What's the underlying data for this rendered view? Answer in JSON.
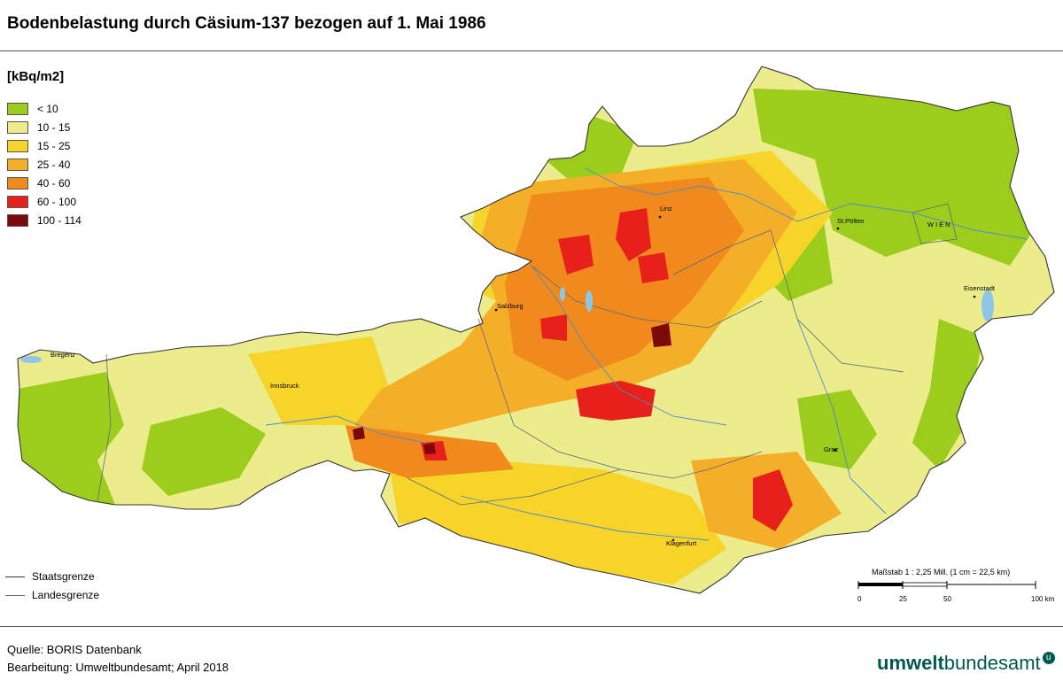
{
  "title": "Bodenbelastung durch Cäsium-137 bezogen auf 1. Mai 1986",
  "unit": "[kBq/m2]",
  "legend": [
    {
      "label": "< 10",
      "color": "#9ccc1c"
    },
    {
      "label": "10 - 15",
      "color": "#ecec8c"
    },
    {
      "label": "15 - 25",
      "color": "#f6d42a"
    },
    {
      "label": "25 - 40",
      "color": "#f4ae28"
    },
    {
      "label": "40 - 60",
      "color": "#f08a1c"
    },
    {
      "label": "60 - 100",
      "color": "#e8201c"
    },
    {
      "label": "100 - 114",
      "color": "#7c0a0a"
    }
  ],
  "line_legend": {
    "staatsgrenze": "Staatsgrenze",
    "landesgrenze": "Landesgrenze"
  },
  "places": [
    "Linz",
    "St.Pölten",
    "WIEN",
    "Eisenstadt",
    "Salzburg",
    "Bregenz",
    "Innsbruck",
    "Graz",
    "Klagenfurt"
  ],
  "scale": {
    "label": "Maßstab 1 : 2,25 Mill. (1 cm = 22,5 km)",
    "ticks": [
      "0",
      "25",
      "50",
      "100 km"
    ]
  },
  "source": {
    "quelle": "Quelle: BORIS Datenbank",
    "bearbeitung": "Bearbeitung: Umweltbundesamt; April 2018"
  },
  "logo": {
    "part1": "umwelt",
    "part2": "bundesamt",
    "mark": "u"
  }
}
